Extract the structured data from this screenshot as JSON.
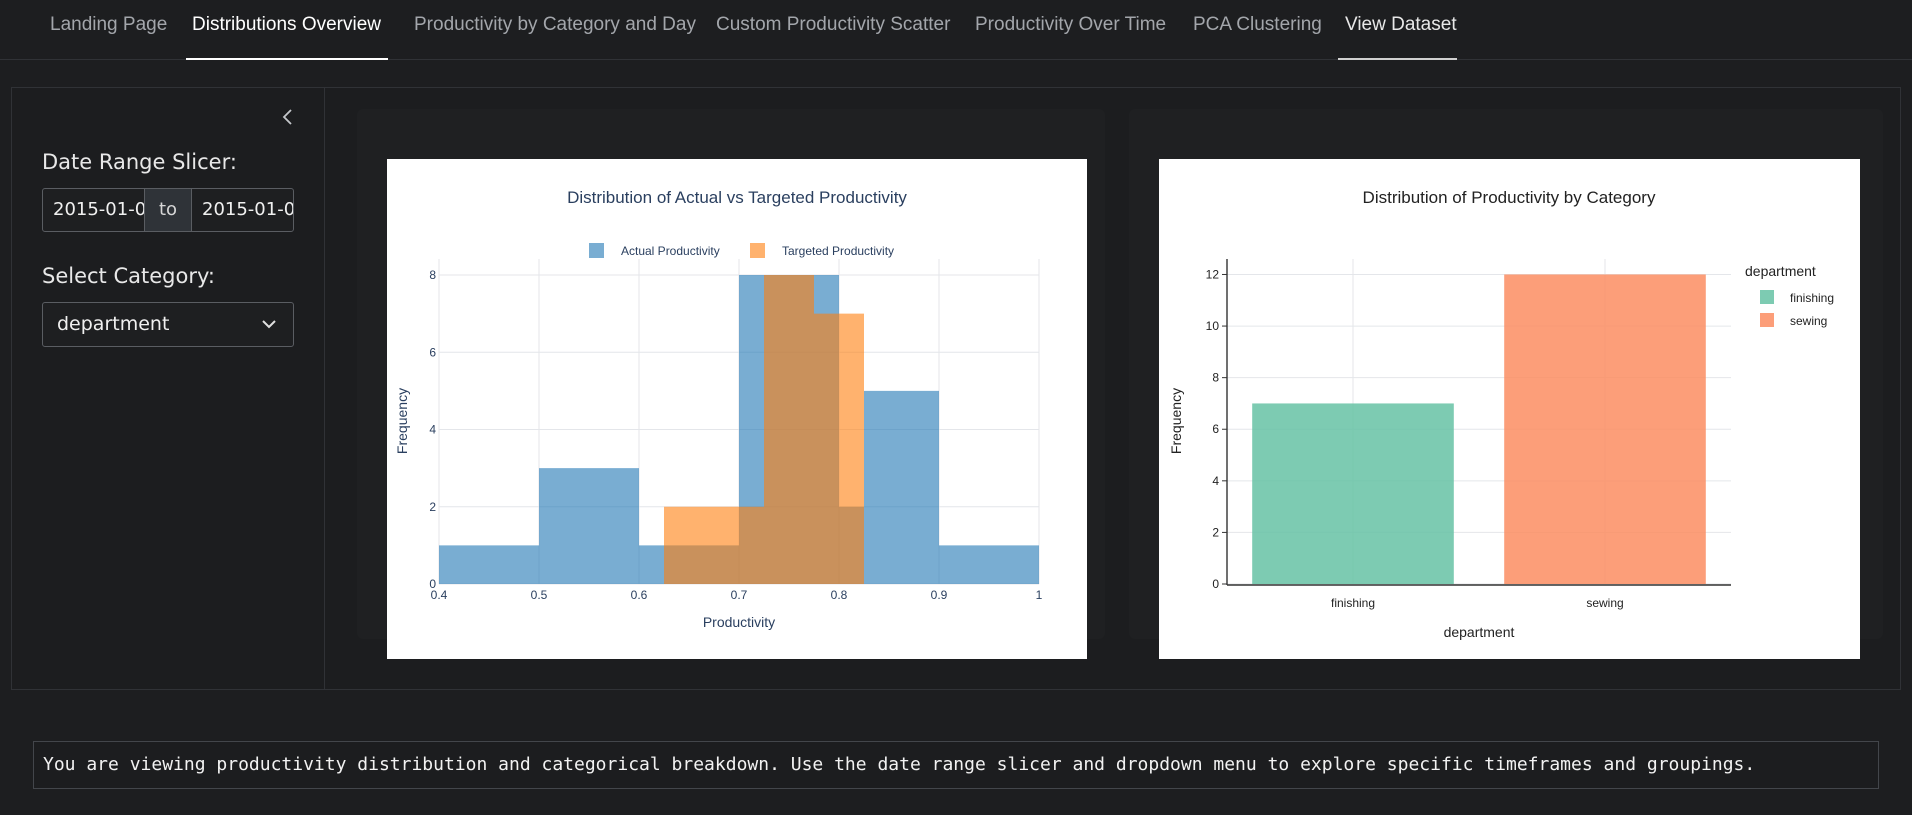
{
  "nav": {
    "tabs": [
      {
        "label": "Landing Page"
      },
      {
        "label": "Distributions Overview"
      },
      {
        "label": "Productivity by Category and Day"
      },
      {
        "label": "Custom Productivity Scatter"
      },
      {
        "label": "Productivity Over Time"
      },
      {
        "label": "PCA Clustering"
      },
      {
        "label": "View Dataset"
      }
    ],
    "active_tab": "Distributions Overview"
  },
  "sidebar": {
    "date_label": "Date Range Slicer:",
    "start_date": "2015-01-0",
    "to_label": "to",
    "end_date": "2015-01-0",
    "category_label": "Select Category:",
    "category_value": "department",
    "collapse_icon": "chevron-left-icon"
  },
  "footer": {
    "message": "You are viewing productivity distribution and categorical breakdown. Use the date range slicer and dropdown menu to explore specific timeframes and groupings."
  },
  "colors": {
    "actual": "#1f77b4",
    "targeted": "#ff7f0e",
    "finishing": "#66c2a5",
    "sewing": "#fc8d62",
    "plot_text": "#2a3f5f"
  },
  "chart_data": [
    {
      "type": "histogram",
      "title": "Distribution of Actual vs Targeted Productivity",
      "xlabel": "Productivity",
      "ylabel": "Frequency",
      "xlim": [
        0.4,
        1.0
      ],
      "ylim": [
        0,
        8
      ],
      "x_ticks": [
        "0.4",
        "0.5",
        "0.6",
        "0.7",
        "0.8",
        "0.9",
        "1"
      ],
      "y_ticks": [
        "0",
        "2",
        "4",
        "6",
        "8"
      ],
      "legend_position": "top",
      "series": [
        {
          "name": "Actual Productivity",
          "bins": [
            {
              "x0": 0.4,
              "x1": 0.5,
              "count": 1
            },
            {
              "x0": 0.5,
              "x1": 0.6,
              "count": 3
            },
            {
              "x0": 0.6,
              "x1": 0.7,
              "count": 1
            },
            {
              "x0": 0.7,
              "x1": 0.725,
              "count": 8
            },
            {
              "x0": 0.725,
              "x1": 0.8,
              "count": 8
            },
            {
              "x0": 0.8,
              "x1": 0.825,
              "count": 2
            },
            {
              "x0": 0.825,
              "x1": 0.9,
              "count": 5
            },
            {
              "x0": 0.9,
              "x1": 1.0,
              "count": 1
            }
          ]
        },
        {
          "name": "Targeted Productivity",
          "bins": [
            {
              "x0": 0.625,
              "x1": 0.725,
              "count": 2
            },
            {
              "x0": 0.725,
              "x1": 0.775,
              "count": 8
            },
            {
              "x0": 0.775,
              "x1": 0.825,
              "count": 7
            }
          ]
        }
      ]
    },
    {
      "type": "bar",
      "title": "Distribution of Productivity by Category",
      "xlabel": "department",
      "ylabel": "Frequency",
      "categories": [
        "finishing",
        "sewing"
      ],
      "values": [
        7,
        12
      ],
      "ylim": [
        0,
        12.6
      ],
      "y_ticks": [
        "0",
        "2",
        "4",
        "6",
        "8",
        "10",
        "12"
      ],
      "legend_title": "department",
      "legend_position": "right",
      "series": [
        {
          "name": "finishing",
          "values": [
            7,
            null
          ]
        },
        {
          "name": "sewing",
          "values": [
            null,
            12
          ]
        }
      ]
    }
  ]
}
